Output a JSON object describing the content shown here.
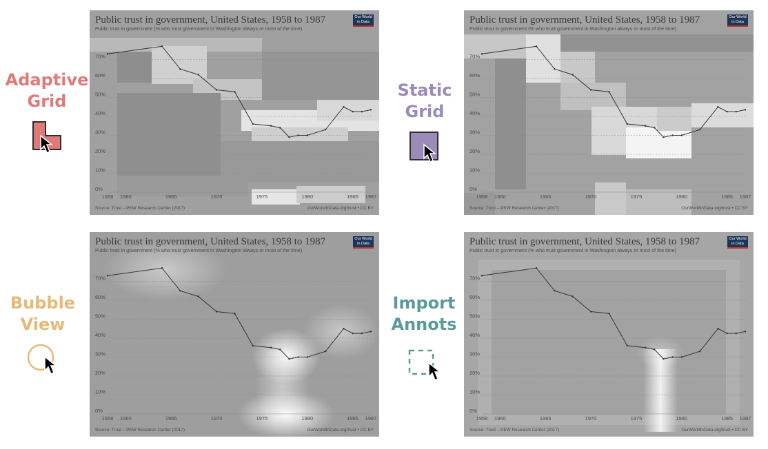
{
  "labels": {
    "adaptive": [
      "Adaptive",
      "Grid"
    ],
    "static": [
      "Static",
      "Grid"
    ],
    "bubble": [
      "Bubble",
      "View"
    ],
    "import": [
      "Import",
      "Annots"
    ]
  },
  "colors": {
    "adaptive": "#e07a7a",
    "static": "#9b8bb8",
    "bubble": "#e8b878",
    "import": "#5a9a9a"
  },
  "icons": {
    "adaptive": "l-shape-grid-cursor-icon",
    "static": "square-grid-cursor-icon",
    "bubble": "circle-bubble-cursor-icon",
    "import": "dashed-box-cursor-icon"
  },
  "chart": {
    "title": "Public trust in government, United States, 1958 to 1987",
    "subtitle": "Public trust in government (% who trust government in Washington always or most of the time)",
    "logo": [
      "Our World",
      "in Data"
    ],
    "source": "Source: Trust – PEW Research Center (2017)",
    "license": "OurWorldInData.org/trust • CC BY"
  },
  "chart_data": {
    "type": "line",
    "x": [
      1958,
      1964,
      1966,
      1968,
      1970,
      1972,
      1974,
      1976,
      1977,
      1978,
      1979,
      1980,
      1982,
      1984,
      1985,
      1986,
      1987
    ],
    "y": [
      73,
      77,
      65,
      62,
      54,
      53,
      36,
      35,
      34,
      29,
      30,
      30,
      33,
      45,
      42.5,
      42.5,
      43.5
    ],
    "xticks": [
      "1958",
      "1960",
      "1965",
      "1970",
      "1975",
      "1980",
      "1985",
      "1987"
    ],
    "yticks": [
      "0%",
      "10%",
      "20%",
      "30%",
      "40%",
      "50%",
      "60%",
      "70%"
    ],
    "xlim": [
      1958,
      1987
    ],
    "ylim": [
      0,
      80
    ],
    "grid": true
  }
}
